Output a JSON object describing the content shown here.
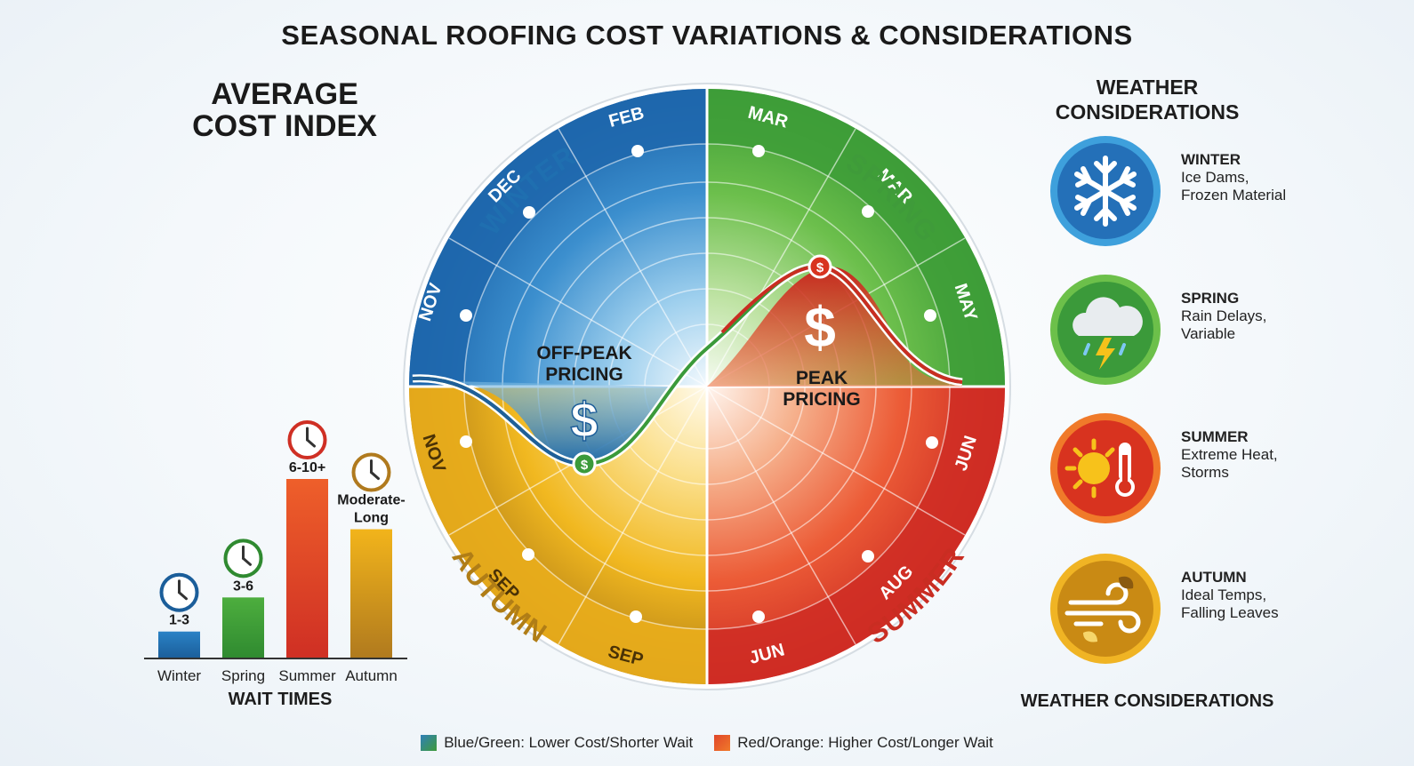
{
  "title": "SEASONAL ROOFING COST VARIATIONS & CONSIDERATIONS",
  "cost_index": {
    "title_line1": "AVERAGE",
    "title_line2": "COST INDEX"
  },
  "wait_times": {
    "title": "WAIT TIMES",
    "bars": [
      {
        "season": "Winter",
        "label": "1-3",
        "level": 0.15,
        "color": "#2a82c6",
        "color2": "#1b5e9a"
      },
      {
        "season": "Spring",
        "label": "3-6",
        "level": 0.34,
        "color": "#4dae3e",
        "color2": "#2f8a30"
      },
      {
        "season": "Summer",
        "label": "6-10+",
        "level": 1.0,
        "color": "#ee5f2a",
        "color2": "#cf2f24"
      },
      {
        "season": "Autumn",
        "label": "Moderate-\nLong",
        "level": 0.72,
        "color": "#f2b41b",
        "color2": "#b07a1e"
      }
    ]
  },
  "wheel": {
    "seasons": [
      {
        "name": "WINTER",
        "color": "#1f6fb0"
      },
      {
        "name": "SPRING",
        "color": "#3f9b3a"
      },
      {
        "name": "SUMMER",
        "color": "#c92d22"
      },
      {
        "name": "AUTUMN",
        "color": "#b07d16"
      }
    ],
    "month_labels": {
      "winter": [
        "NOV",
        "DEC",
        "FEB"
      ],
      "spring": [
        "MAR",
        "MAR",
        "MAY"
      ],
      "summer": [
        "JUN",
        "AUG",
        "JUN"
      ],
      "autumn": [
        "SEP",
        "SEP",
        "NOV"
      ]
    },
    "off_peak_line1": "OFF-PEAK",
    "off_peak_line2": "PRICING",
    "peak_line1": "PEAK",
    "peak_line2": "PRICING",
    "dollar_sign": "$"
  },
  "weather": {
    "title_line1": "WEATHER",
    "title_line2": "CONSIDERATIONS",
    "footer": "WEATHER CONSIDERATIONS",
    "items": [
      {
        "season": "WINTER",
        "desc": "Ice Dams,\nFrozen Material",
        "icon": "snowflake-icon",
        "color": "#2470b8"
      },
      {
        "season": "SPRING",
        "desc": "Rain Delays,\nVariable",
        "icon": "storm-cloud-icon",
        "color": "#3b9a3a"
      },
      {
        "season": "SUMMER",
        "desc": "Extreme Heat,\nStorms",
        "icon": "sun-thermometer-icon",
        "color": "#d8331f"
      },
      {
        "season": "AUTUMN",
        "desc": "Ideal Temps,\nFalling Leaves",
        "icon": "wind-leaves-icon",
        "color": "#c98a14"
      }
    ]
  },
  "legend": {
    "cool": "Blue/Green: Lower Cost/Shorter Wait",
    "warm": "Red/Orange: Higher Cost/Longer Wait",
    "cool_color": "#2f7fb8",
    "warm_color": "#e0462a"
  }
}
